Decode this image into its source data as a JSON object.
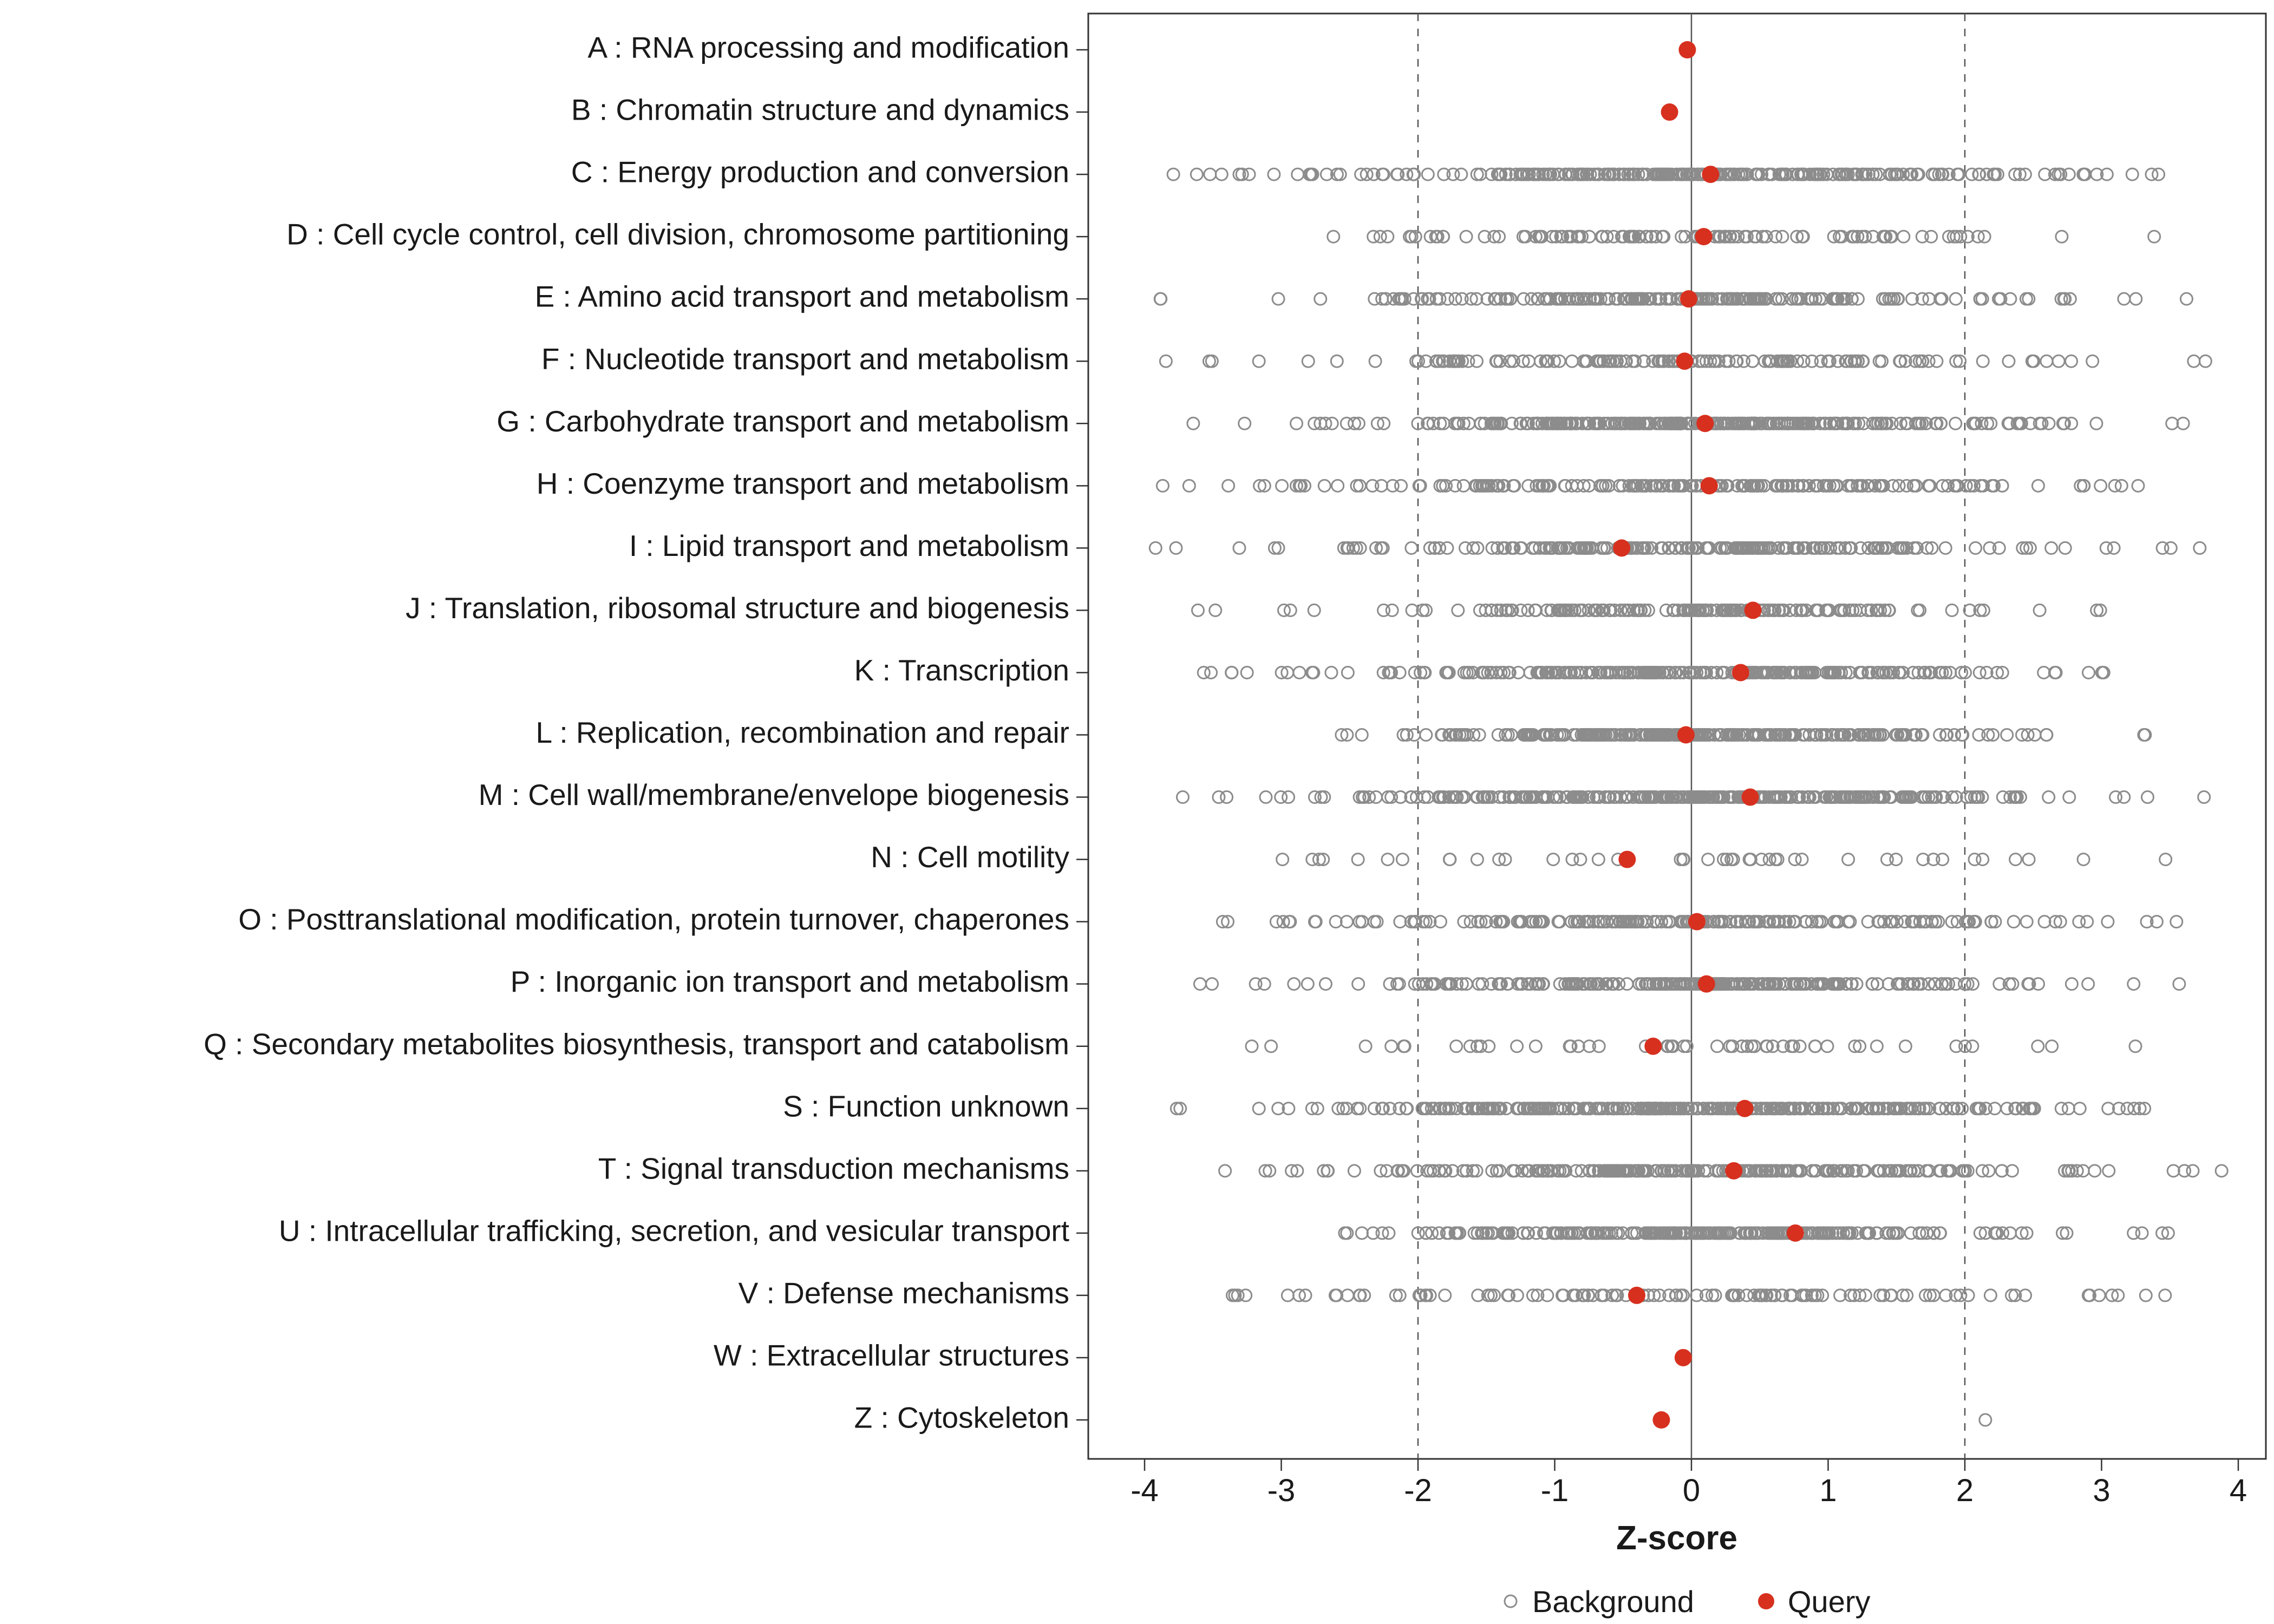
{
  "colors": {
    "query": "#d7301f",
    "background_stroke": "#8c8c8c",
    "panel_border": "#333333",
    "ref_line": "#555555",
    "axis_text": "#1a1a1a"
  },
  "chart_data": {
    "type": "scatter",
    "title": "",
    "xlabel": "Z-score",
    "ylabel": "",
    "xlim": [
      -4.4,
      4.4
    ],
    "x_ticks": [
      "-4",
      "-3",
      "-2",
      "-1",
      "0",
      "1",
      "2",
      "3",
      "4"
    ],
    "x_tick_values": [
      -4,
      -3,
      -2,
      -1,
      0,
      1,
      2,
      3,
      4
    ],
    "grid": false,
    "reference_lines": {
      "solid": [
        0
      ],
      "dashed": [
        -2,
        2
      ]
    },
    "legend_position": "bottom",
    "legend": [
      {
        "label": "Background",
        "marker": "open-circle"
      },
      {
        "label": "Query",
        "marker": "filled-circle"
      }
    ],
    "categories": [
      {
        "label": "A : RNA processing and modification",
        "query": -0.03,
        "background": {
          "count": 0,
          "sd": 1,
          "min": 0,
          "max": 0
        }
      },
      {
        "label": "B : Chromatin structure and dynamics",
        "query": -0.16,
        "background": {
          "count": 0,
          "sd": 1,
          "min": 0,
          "max": 0
        }
      },
      {
        "label": "C : Energy production and conversion",
        "query": 0.14,
        "background": {
          "count": 260,
          "sd": 1.1,
          "min": -3.9,
          "max": 3.5
        }
      },
      {
        "label": "D : Cell cycle control, cell division, chromosome partitioning",
        "query": 0.09,
        "background": {
          "count": 110,
          "sd": 1.2,
          "min": -3.0,
          "max": 3.5
        }
      },
      {
        "label": "E : Amino acid transport and metabolism",
        "query": -0.02,
        "background": {
          "count": 210,
          "sd": 1.2,
          "min": -4.0,
          "max": 3.7
        }
      },
      {
        "label": "F : Nucleotide transport and metabolism",
        "query": -0.05,
        "background": {
          "count": 150,
          "sd": 1.3,
          "min": -3.9,
          "max": 3.8
        }
      },
      {
        "label": "G : Carbohydrate transport and metabolism",
        "query": 0.1,
        "background": {
          "count": 320,
          "sd": 1.0,
          "min": -3.8,
          "max": 3.6
        }
      },
      {
        "label": "H : Coenzyme transport and metabolism",
        "query": 0.13,
        "background": {
          "count": 200,
          "sd": 1.3,
          "min": -3.9,
          "max": 3.9
        }
      },
      {
        "label": "I : Lipid transport and metabolism",
        "query": -0.51,
        "background": {
          "count": 210,
          "sd": 1.3,
          "min": -4.0,
          "max": 3.9
        }
      },
      {
        "label": "J : Translation, ribosomal structure and biogenesis",
        "query": 0.45,
        "background": {
          "count": 170,
          "sd": 1.0,
          "min": -3.7,
          "max": 3.1
        }
      },
      {
        "label": "K : Transcription",
        "query": 0.36,
        "background": {
          "count": 260,
          "sd": 1.1,
          "min": -3.9,
          "max": 3.1
        }
      },
      {
        "label": "L : Replication, recombination and repair",
        "query": -0.04,
        "background": {
          "count": 300,
          "sd": 0.9,
          "min": -2.6,
          "max": 3.6
        }
      },
      {
        "label": "M : Cell wall/membrane/envelope biogenesis",
        "query": 0.43,
        "background": {
          "count": 310,
          "sd": 1.2,
          "min": -4.0,
          "max": 3.8
        }
      },
      {
        "label": "N : Cell motility",
        "query": -0.47,
        "background": {
          "count": 45,
          "sd": 1.7,
          "min": -3.5,
          "max": 3.5
        }
      },
      {
        "label": "O : Posttranslational modification, protein turnover, chaperones",
        "query": 0.04,
        "background": {
          "count": 200,
          "sd": 1.2,
          "min": -3.9,
          "max": 3.6
        }
      },
      {
        "label": "P : Inorganic ion transport and metabolism",
        "query": 0.11,
        "background": {
          "count": 250,
          "sd": 1.1,
          "min": -3.6,
          "max": 3.7
        }
      },
      {
        "label": "Q : Secondary metabolites biosynthesis, transport and catabolism",
        "query": -0.28,
        "background": {
          "count": 55,
          "sd": 1.5,
          "min": -3.6,
          "max": 3.3
        }
      },
      {
        "label": "S : Function unknown",
        "query": 0.39,
        "background": {
          "count": 340,
          "sd": 1.2,
          "min": -3.8,
          "max": 3.6
        }
      },
      {
        "label": "T : Signal transduction mechanisms",
        "query": 0.31,
        "background": {
          "count": 260,
          "sd": 1.2,
          "min": -3.7,
          "max": 3.9
        }
      },
      {
        "label": "U : Intracellular trafficking, secretion, and vesicular transport",
        "query": 0.76,
        "background": {
          "count": 250,
          "sd": 1.0,
          "min": -2.7,
          "max": 3.8
        }
      },
      {
        "label": "V : Defense mechanisms",
        "query": -0.4,
        "background": {
          "count": 120,
          "sd": 1.5,
          "min": -3.5,
          "max": 3.8
        }
      },
      {
        "label": "W : Extracellular structures",
        "query": -0.06,
        "background": {
          "count": 0,
          "sd": 1,
          "min": 0,
          "max": 0
        }
      },
      {
        "label": "Z : Cytoskeleton",
        "query": -0.22,
        "background": {
          "count": 1,
          "sd": 1,
          "min": 2.15,
          "max": 2.15,
          "points": [
            2.15
          ]
        }
      }
    ]
  }
}
